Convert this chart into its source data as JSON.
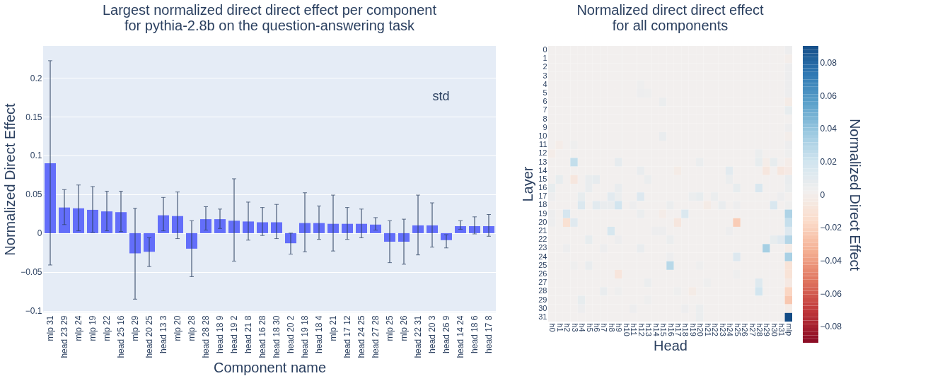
{
  "chart_data": [
    {
      "type": "bar",
      "title": "Largest normalized direct direct effect per component\nfor pythia-2.8b on the question-answering task",
      "xlabel": "Component name",
      "ylabel": "Normalized Direct Effect",
      "grid": "y",
      "color": "#636efa",
      "categories": [
        "mlp 31",
        "head 23 29",
        "mlp 24",
        "mlp 19",
        "mlp 22",
        "head 25 16",
        "mlp 29",
        "head 20 25",
        "head 13 3",
        "mlp 20",
        "mlp 28",
        "head 28 28",
        "head 18 9",
        "head 19 2",
        "head 21 8",
        "head 16 28",
        "head 18 30",
        "head 20 2",
        "head 19 18",
        "head 18 4",
        "mlp 21",
        "head 17 12",
        "head 24 25",
        "head 27 28",
        "mlp 25",
        "mlp 26",
        "head 22 31",
        "head 20 3",
        "head 26 9",
        "head 14 24",
        "head 18 6",
        "head 17 8"
      ],
      "values": [
        0.09,
        0.033,
        0.032,
        0.03,
        0.028,
        0.027,
        -0.026,
        -0.024,
        0.023,
        0.022,
        -0.02,
        0.018,
        0.018,
        0.016,
        0.015,
        0.014,
        0.014,
        -0.013,
        0.013,
        0.013,
        0.012,
        0.012,
        0.012,
        0.011,
        -0.011,
        -0.011,
        0.01,
        0.01,
        -0.009,
        0.009,
        0.009,
        0.009
      ],
      "errors": [
        [
          -0.041,
          0.222
        ],
        [
          0.011,
          0.056
        ],
        [
          0.003,
          0.062
        ],
        [
          0.001,
          0.06
        ],
        [
          0.003,
          0.054
        ],
        [
          0.002,
          0.054
        ],
        [
          -0.085,
          0.032
        ],
        [
          -0.043,
          -0.006
        ],
        [
          0.003,
          0.046
        ],
        [
          -0.007,
          0.053
        ],
        [
          -0.056,
          0.016
        ],
        [
          0.004,
          0.034
        ],
        [
          0.006,
          0.031
        ],
        [
          -0.036,
          0.07
        ],
        [
          -0.009,
          0.04
        ],
        [
          -0.003,
          0.033
        ],
        [
          -0.007,
          0.037
        ],
        [
          -0.027,
          0.0
        ],
        [
          -0.024,
          0.052
        ],
        [
          -0.008,
          0.035
        ],
        [
          -0.023,
          0.049
        ],
        [
          -0.008,
          0.033
        ],
        [
          -0.006,
          0.031
        ],
        [
          0.004,
          0.02
        ],
        [
          -0.038,
          0.016
        ],
        [
          -0.04,
          0.018
        ],
        [
          -0.028,
          0.049
        ],
        [
          -0.018,
          0.039
        ],
        [
          -0.019,
          -0.002
        ],
        [
          0.005,
          0.016
        ],
        [
          -0.001,
          0.021
        ],
        [
          -0.004,
          0.024
        ]
      ],
      "ylim": [
        -0.102,
        0.241
      ],
      "yticks": [
        -0.1,
        -0.05,
        0,
        0.05,
        0.1,
        0.15,
        0.2
      ],
      "annotations": [
        "std"
      ]
    },
    {
      "type": "heatmap",
      "title": "Normalized direct direct effect\nfor all components",
      "xlabel": "Head",
      "ylabel": "Layer",
      "clabel": "Normalized Direct Effect",
      "clim": [
        -0.09,
        0.09
      ],
      "cticks": [
        -0.08,
        -0.06,
        -0.04,
        -0.02,
        0,
        0.02,
        0.04,
        0.06,
        0.08
      ],
      "categories": [
        "h0",
        "h1",
        "h2",
        "h3",
        "h4",
        "h5",
        "h6",
        "h7",
        "h8",
        "h9",
        "h10",
        "h11",
        "h12",
        "h13",
        "h14",
        "h15",
        "h16",
        "h17",
        "h18",
        "h19",
        "h20",
        "h21",
        "h22",
        "h23",
        "h24",
        "h25",
        "h26",
        "h27",
        "h28",
        "h29",
        "h30",
        "h31",
        "mlp"
      ],
      "y_categories": [
        "0",
        "1",
        "2",
        "3",
        "4",
        "5",
        "6",
        "7",
        "8",
        "9",
        "10",
        "11",
        "12",
        "13",
        "14",
        "15",
        "16",
        "17",
        "18",
        "19",
        "20",
        "21",
        "22",
        "23",
        "24",
        "25",
        "26",
        "27",
        "28",
        "29",
        "30",
        "31"
      ],
      "cells": [
        [
          0,
          0,
          0,
          0,
          0,
          0,
          0,
          0,
          0,
          0,
          0,
          0,
          0,
          0,
          0,
          0,
          0,
          0,
          0,
          0,
          0,
          0,
          0,
          0,
          0,
          0,
          0,
          0,
          0,
          0,
          0,
          0,
          0.003
        ],
        [
          0,
          0,
          0,
          0,
          0,
          0,
          0,
          0,
          0,
          0,
          0,
          0,
          0,
          0,
          0,
          0,
          0,
          0,
          0,
          0,
          0,
          0,
          0,
          0,
          0,
          0,
          0,
          0,
          0,
          0,
          0,
          0,
          -0.002
        ],
        [
          0,
          0,
          0,
          0,
          0,
          0,
          0,
          0,
          0,
          0,
          0,
          0,
          0,
          0,
          0,
          0,
          0,
          0,
          0,
          0,
          0,
          0,
          0,
          0,
          0,
          0,
          0,
          0,
          0,
          0,
          0,
          0,
          0.003
        ],
        [
          0,
          0,
          0,
          0,
          0,
          0,
          0,
          0,
          0,
          0,
          0,
          0,
          0,
          0,
          0,
          0,
          0,
          0,
          0,
          0,
          0,
          0,
          0,
          0,
          0,
          0,
          0,
          0,
          0,
          0,
          0,
          0,
          0.003
        ],
        [
          0,
          0,
          0,
          0,
          0,
          0,
          0,
          0,
          0,
          0,
          0,
          0,
          0.002,
          0,
          0,
          0,
          0,
          0,
          0,
          0,
          0,
          0,
          0,
          0,
          0,
          0,
          0,
          0,
          0,
          0,
          0,
          0,
          0.003
        ],
        [
          0,
          0,
          0,
          0,
          0,
          0,
          0,
          0,
          0,
          0,
          0,
          0,
          0.003,
          0.002,
          0,
          0,
          0,
          0,
          0,
          0,
          0,
          0,
          0,
          0,
          0,
          0,
          0,
          0,
          0,
          0,
          0,
          0,
          0.003
        ],
        [
          0,
          0,
          0,
          0,
          0,
          0,
          0,
          0,
          0,
          0,
          0,
          0,
          0,
          0,
          0,
          0.004,
          0,
          0,
          0,
          0,
          0,
          0,
          0,
          0,
          0,
          0,
          0,
          0,
          0,
          0,
          0,
          0,
          -0.004
        ],
        [
          0,
          0,
          0,
          0,
          0,
          0,
          0,
          0,
          0,
          0,
          0,
          0,
          0,
          0,
          0,
          0,
          0,
          0,
          0,
          0,
          0,
          0,
          0,
          0,
          0,
          0,
          0,
          0,
          0,
          0,
          0,
          0,
          0.006
        ],
        [
          0,
          0,
          0,
          0,
          0,
          0,
          0,
          0,
          0,
          0,
          0,
          0,
          0,
          0,
          0,
          0,
          0,
          0,
          0,
          0,
          0,
          0,
          0,
          0,
          0,
          0,
          0,
          0,
          0,
          0,
          0,
          0,
          0
        ],
        [
          0,
          0,
          0,
          0,
          0,
          0,
          0,
          0,
          0,
          0,
          0,
          0,
          0,
          0,
          0,
          0,
          0,
          0,
          0,
          0,
          0,
          0,
          0,
          0,
          0,
          0,
          0,
          0,
          0,
          0,
          0,
          0,
          0.003
        ],
        [
          0,
          0,
          0,
          0,
          0,
          0,
          0,
          0,
          0,
          0,
          0,
          0,
          0,
          0,
          0,
          0.005,
          0,
          0,
          0,
          0,
          0,
          0,
          0,
          0,
          0,
          0,
          0,
          0,
          0,
          0,
          0,
          0,
          -0.002
        ],
        [
          0,
          -0.003,
          0,
          0.002,
          0,
          0,
          0,
          0,
          0,
          0,
          0,
          0,
          0,
          0,
          0,
          0,
          0,
          0,
          0,
          0,
          0,
          0,
          0,
          0,
          0,
          0,
          0,
          0,
          0,
          0,
          0,
          0,
          0.003
        ],
        [
          -0.003,
          0,
          0,
          0,
          0,
          0,
          0,
          0,
          0,
          0,
          0,
          0,
          0,
          0,
          0,
          0,
          0,
          0,
          0,
          0,
          0,
          0,
          0,
          0,
          0,
          0,
          0,
          0,
          0.004,
          0,
          0,
          0,
          0.002
        ],
        [
          0,
          0,
          0,
          0.023,
          0,
          0,
          0,
          0,
          0,
          0.007,
          0,
          0,
          0,
          0,
          0,
          0,
          0,
          0,
          0,
          0,
          0.004,
          0,
          0,
          0,
          0,
          0,
          0,
          0,
          0.006,
          -0.003,
          0.006,
          0,
          -0.003
        ],
        [
          0,
          0,
          0,
          0,
          0,
          0,
          0,
          0,
          0,
          0,
          0,
          0,
          0.005,
          0,
          0,
          0,
          0,
          -0.004,
          0,
          0,
          0,
          0,
          0,
          0,
          0.009,
          0,
          0,
          0,
          0,
          -0.008,
          0,
          -0.008,
          -0.005
        ],
        [
          0,
          0.006,
          0,
          -0.008,
          0,
          0.005,
          0.007,
          0,
          0,
          0,
          0,
          0,
          0,
          0.004,
          0,
          0,
          0,
          0,
          0,
          0,
          0,
          0,
          0,
          0,
          0.004,
          0,
          0,
          0,
          0,
          0,
          0,
          0,
          0.005
        ],
        [
          0.006,
          0,
          0,
          0,
          0,
          0.005,
          0,
          0,
          0,
          0.005,
          0,
          0,
          0,
          0,
          0,
          0,
          0,
          0,
          0,
          0,
          0,
          0,
          0,
          0,
          0,
          0.006,
          0,
          0,
          0.014,
          0,
          0,
          0,
          0.004
        ],
        [
          0.003,
          0,
          0,
          0,
          0.006,
          0,
          0,
          0,
          0.009,
          0.004,
          0,
          0,
          0.012,
          0,
          0,
          0,
          0,
          0,
          0,
          0.004,
          0.006,
          0,
          0.004,
          0,
          0,
          0,
          0,
          0,
          0,
          0,
          0,
          0.003,
          0
        ],
        [
          0,
          0,
          0,
          0,
          0.013,
          0,
          0.009,
          0.005,
          0.005,
          0.018,
          0,
          0.003,
          0,
          0,
          0,
          0,
          0.004,
          0,
          0,
          0,
          0,
          -0.004,
          0,
          0.005,
          0,
          0.003,
          0,
          0,
          0,
          0,
          0.014,
          0,
          0.002
        ],
        [
          0.003,
          0,
          0.016,
          0,
          0,
          0,
          0,
          0,
          0,
          0,
          0,
          0,
          0.004,
          0,
          0,
          -0.003,
          0,
          0,
          0.013,
          0,
          0,
          0,
          0,
          0,
          0,
          0,
          0,
          0,
          0,
          0,
          0,
          0,
          0.03
        ],
        [
          0.003,
          0,
          -0.013,
          0.01,
          0,
          0,
          0,
          0,
          0,
          0,
          0,
          0,
          0,
          0,
          0,
          0,
          0,
          -0.008,
          0,
          0,
          0,
          0,
          0,
          0,
          0,
          -0.024,
          0,
          0,
          0,
          0,
          0,
          0,
          0.022
        ],
        [
          0,
          0,
          0,
          0,
          0,
          0,
          0,
          0,
          0.015,
          0,
          0,
          0,
          0,
          0,
          0.003,
          0.003,
          0,
          0,
          0,
          0,
          0,
          0,
          0,
          0,
          0.003,
          0,
          0,
          0,
          0,
          0,
          0,
          0,
          0.012
        ],
        [
          0,
          0,
          0,
          0,
          0,
          0.006,
          0,
          0,
          0,
          0.003,
          0,
          0,
          0,
          0,
          0,
          0,
          0.004,
          0,
          0,
          0,
          0,
          0,
          0,
          0,
          0,
          0,
          0,
          0,
          0,
          0,
          0.006,
          0.01,
          0.028
        ],
        [
          0,
          0,
          0.003,
          0,
          0,
          0,
          0,
          0.003,
          0,
          0,
          0,
          0,
          0.005,
          0,
          0,
          0,
          0,
          0,
          0,
          0,
          0,
          0,
          0,
          0,
          0,
          0,
          0,
          0,
          0,
          0.033,
          0,
          0,
          -0.004
        ],
        [
          0,
          0,
          0,
          0,
          0,
          0,
          0,
          0,
          0,
          0,
          0,
          0,
          0,
          0,
          0,
          0,
          0.003,
          0,
          0,
          0,
          0,
          0,
          0,
          0,
          0,
          0.012,
          0,
          0,
          0,
          0,
          0,
          0,
          0.032
        ],
        [
          0,
          0,
          0,
          0.002,
          0,
          0.005,
          0,
          0,
          0,
          0,
          0,
          0,
          0,
          0,
          0,
          0,
          0.027,
          0,
          0,
          0,
          0.002,
          0,
          0,
          0,
          0,
          0,
          0,
          0,
          0,
          0,
          0,
          0,
          -0.011
        ],
        [
          0,
          0,
          0,
          0,
          0,
          0,
          0,
          0,
          0,
          -0.009,
          0,
          0,
          0,
          0,
          0,
          0,
          0,
          0,
          0,
          0,
          0,
          0,
          0,
          0,
          0,
          0.002,
          0,
          0,
          0,
          0,
          0,
          0,
          -0.011
        ],
        [
          0,
          0,
          0,
          0,
          0,
          0,
          0,
          0,
          0,
          0,
          0,
          0,
          0,
          0.004,
          0,
          0,
          0,
          0,
          0,
          0,
          0,
          0.002,
          0,
          0,
          0,
          0,
          0,
          0,
          0.011,
          0,
          0,
          0,
          -0.006
        ],
        [
          0,
          0,
          0,
          0,
          0,
          0,
          0,
          0.005,
          0,
          0.002,
          0,
          0,
          0,
          0,
          0,
          0,
          0,
          0.002,
          0,
          -0.004,
          0,
          0,
          0,
          0,
          0,
          0,
          0,
          0,
          0.018,
          0,
          0,
          0,
          -0.02
        ],
        [
          0,
          0,
          0,
          0,
          0.006,
          0,
          0,
          0,
          0,
          0,
          0,
          0,
          0,
          0.002,
          0,
          0,
          0,
          0,
          0,
          0,
          0,
          0,
          0,
          0,
          0,
          0,
          0,
          0,
          0,
          0,
          0,
          0,
          -0.026
        ],
        [
          0,
          0,
          0,
          0,
          0.003,
          0,
          0,
          0,
          0,
          0,
          0,
          0.003,
          0,
          0,
          0,
          0,
          0,
          0,
          0.003,
          0,
          0.004,
          0,
          0,
          0,
          0,
          0,
          0,
          0,
          0,
          0,
          0,
          0,
          -0.004
        ],
        [
          0,
          0,
          0,
          0,
          0,
          0,
          0,
          0,
          0,
          0,
          0,
          0,
          0,
          0,
          0,
          0,
          0,
          0,
          0,
          0,
          0.004,
          0,
          0,
          0,
          0,
          0,
          0,
          0,
          0,
          0,
          0,
          0,
          0.09
        ]
      ]
    }
  ]
}
